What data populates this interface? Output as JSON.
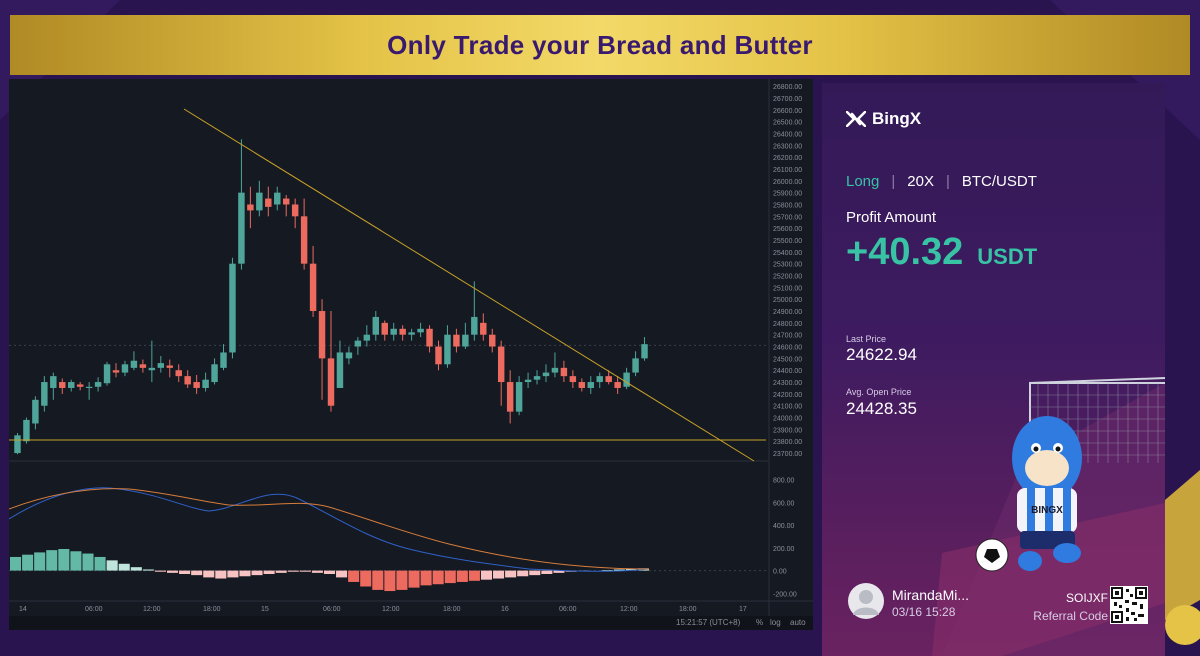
{
  "banner": {
    "title": "Only Trade your Bread and Butter"
  },
  "chart": {
    "price_axis": [
      "26800.00",
      "26700.00",
      "26600.00",
      "26500.00",
      "26400.00",
      "26300.00",
      "26200.00",
      "26100.00",
      "26000.00",
      "25900.00",
      "25800.00",
      "25700.00",
      "25600.00",
      "25500.00",
      "25400.00",
      "25300.00",
      "25200.00",
      "25100.00",
      "25000.00",
      "24900.00",
      "24800.00",
      "24700.00",
      "24600.00",
      "24500.00",
      "24400.00",
      "24300.00",
      "24200.00",
      "24100.00",
      "24000.00",
      "23900.00",
      "23800.00",
      "23700.00"
    ],
    "macd_axis": [
      "800.00",
      "600.00",
      "400.00",
      "200.00",
      "0.00",
      "-200.00"
    ],
    "time_axis": [
      "14",
      "06:00",
      "12:00",
      "18:00",
      "15",
      "06:00",
      "12:00",
      "18:00",
      "16",
      "06:00",
      "12:00",
      "18:00",
      "17"
    ],
    "status": {
      "time": "15:21:57 (UTC+8)",
      "pct": "%",
      "log": "log",
      "auto": "auto"
    },
    "colors": {
      "up": "#4fa59a",
      "down": "#ec6a5e",
      "trendline": "#c9a227",
      "bg": "#151922"
    }
  },
  "chart_data": {
    "type": "candlestick",
    "candles": [
      [
        23700,
        23850,
        23690,
        23870
      ],
      [
        23800,
        23980,
        23780,
        24000
      ],
      [
        23950,
        24150,
        23900,
        24180
      ],
      [
        24100,
        24300,
        24050,
        24350
      ],
      [
        24250,
        24350,
        24150,
        24380
      ],
      [
        24300,
        24250,
        24200,
        24330
      ],
      [
        24250,
        24300,
        24220,
        24320
      ],
      [
        24280,
        24260,
        24230,
        24300
      ],
      [
        24250,
        24260,
        24150,
        24300
      ],
      [
        24260,
        24300,
        24220,
        24340
      ],
      [
        24290,
        24450,
        24270,
        24470
      ],
      [
        24400,
        24380,
        24340,
        24460
      ],
      [
        24380,
        24450,
        24350,
        24480
      ],
      [
        24420,
        24480,
        24400,
        24560
      ],
      [
        24450,
        24420,
        24380,
        24490
      ],
      [
        24400,
        24420,
        24300,
        24650
      ],
      [
        24420,
        24460,
        24380,
        24520
      ],
      [
        24440,
        24420,
        24340,
        24490
      ],
      [
        24400,
        24350,
        24300,
        24450
      ],
      [
        24350,
        24280,
        24250,
        24400
      ],
      [
        24300,
        24250,
        24200,
        24360
      ],
      [
        24250,
        24320,
        24220,
        24380
      ],
      [
        24300,
        24450,
        24280,
        24500
      ],
      [
        24420,
        24550,
        24400,
        24620
      ],
      [
        24550,
        25300,
        24500,
        25350
      ],
      [
        25300,
        25900,
        25250,
        26350
      ],
      [
        25800,
        25750,
        25600,
        25950
      ],
      [
        25750,
        25900,
        25700,
        26000
      ],
      [
        25850,
        25780,
        25700,
        25950
      ],
      [
        25800,
        25900,
        25750,
        25950
      ],
      [
        25850,
        25800,
        25700,
        25880
      ],
      [
        25800,
        25700,
        25600,
        25850
      ],
      [
        25700,
        25300,
        25250,
        25850
      ],
      [
        25300,
        24900,
        24850,
        25450
      ],
      [
        24900,
        24500,
        24150,
        25000
      ],
      [
        24500,
        24100,
        24050,
        24900
      ],
      [
        24250,
        24550,
        24250,
        24650
      ],
      [
        24500,
        24550,
        24450,
        24600
      ],
      [
        24600,
        24650,
        24530,
        24680
      ],
      [
        24650,
        24700,
        24600,
        24780
      ],
      [
        24700,
        24850,
        24650,
        24900
      ],
      [
        24800,
        24700,
        24650,
        24820
      ],
      [
        24700,
        24750,
        24650,
        24800
      ],
      [
        24750,
        24700,
        24650,
        24780
      ],
      [
        24700,
        24720,
        24650,
        24750
      ],
      [
        24720,
        24750,
        24680,
        24800
      ],
      [
        24750,
        24600,
        24550,
        24780
      ],
      [
        24600,
        24450,
        24400,
        24650
      ],
      [
        24450,
        24700,
        24420,
        24780
      ],
      [
        24700,
        24600,
        24550,
        24750
      ],
      [
        24600,
        24700,
        24580,
        24800
      ],
      [
        24700,
        24850,
        24650,
        25150
      ],
      [
        24800,
        24700,
        24650,
        24880
      ],
      [
        24700,
        24600,
        24550,
        24750
      ],
      [
        24600,
        24300,
        24100,
        24650
      ],
      [
        24300,
        24050,
        23950,
        24400
      ],
      [
        24050,
        24300,
        24020,
        24350
      ],
      [
        24300,
        24320,
        24250,
        24380
      ],
      [
        24320,
        24350,
        24280,
        24400
      ],
      [
        24350,
        24380,
        24300,
        24450
      ],
      [
        24380,
        24420,
        24340,
        24550
      ],
      [
        24420,
        24350,
        24300,
        24480
      ],
      [
        24350,
        24300,
        24250,
        24400
      ],
      [
        24300,
        24250,
        24220,
        24330
      ],
      [
        24250,
        24300,
        24200,
        24350
      ],
      [
        24300,
        24350,
        24250,
        24380
      ],
      [
        24350,
        24300,
        24280,
        24400
      ],
      [
        24300,
        24250,
        24200,
        24350
      ],
      [
        24260,
        24380,
        24240,
        24420
      ],
      [
        24380,
        24500,
        24350,
        24560
      ],
      [
        24500,
        24620,
        24480,
        24680
      ]
    ],
    "trendline": {
      "from": [
        0.2,
        26900
      ],
      "to": [
        1.0,
        23650
      ]
    },
    "support": 23810,
    "yrange": [
      23650,
      26860
    ]
  },
  "card": {
    "brand": "BingX",
    "side": "Long",
    "leverage": "20X",
    "pair": "BTC/USDT",
    "profit_label": "Profit Amount",
    "profit_value": "+40.32",
    "profit_unit": "USDT",
    "last_price_label": "Last Price",
    "last_price": "24622.94",
    "avg_open_label": "Avg. Open Price",
    "avg_open": "24428.35",
    "user_name": "MirandaMi...",
    "user_date": "03/16 15:28",
    "ref_code": "SOIJXF",
    "ref_label": "Referral Code",
    "mascot_shirt": "BINGX",
    "colors": {
      "profit": "#37c3a4",
      "card_bg": "#3a1a5c"
    }
  }
}
